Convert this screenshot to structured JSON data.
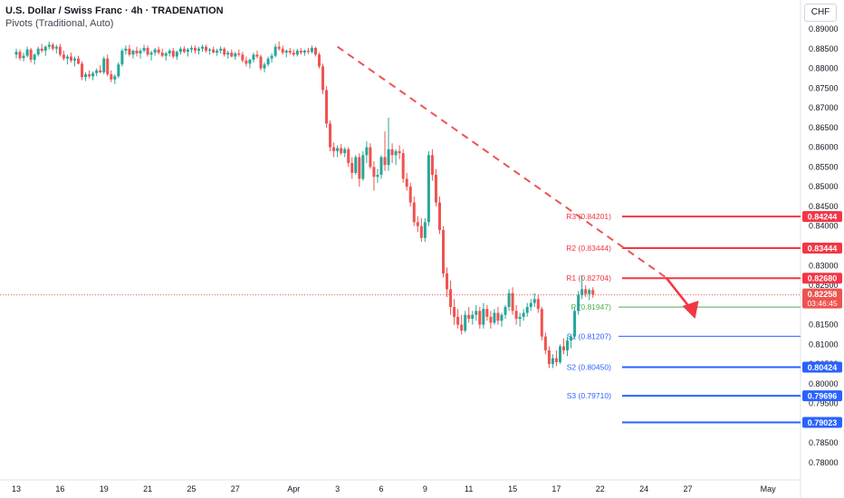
{
  "header": {
    "title": "U.S. Dollar / Swiss Franc · 4h · TRADENATION",
    "indicator": "Pivots (Traditional, Auto)"
  },
  "currency_button": "CHF",
  "colors": {
    "up": "#26a69a",
    "down": "#ef5350",
    "resistance": "#f23645",
    "support": "#2962ff",
    "pivot": "#4caf50",
    "grid_text": "#131722"
  },
  "chart_data": {
    "type": "candlestick",
    "ylim": [
      0.7775,
      0.8925
    ],
    "yticks": [
      0.89,
      0.885,
      0.88,
      0.875,
      0.87,
      0.865,
      0.86,
      0.855,
      0.85,
      0.845,
      0.84,
      0.835,
      0.83,
      0.825,
      0.82,
      0.815,
      0.81,
      0.805,
      0.8,
      0.795,
      0.79,
      0.785,
      0.78
    ],
    "ytick_labels": [
      "0.89000",
      "0.88500",
      "0.88000",
      "0.87500",
      "0.87000",
      "0.86500",
      "0.86000",
      "0.85500",
      "0.85000",
      "0.84500",
      "0.84000",
      "0.83500",
      "0.83000",
      "0.82500",
      "0.82000",
      "0.81500",
      "0.81000",
      "0.80500",
      "0.80000",
      "0.79500",
      "0.79000",
      "0.78500",
      "0.78000"
    ],
    "xticks": [
      {
        "label": "13",
        "i": 0
      },
      {
        "label": "16",
        "i": 12
      },
      {
        "label": "19",
        "i": 24
      },
      {
        "label": "21",
        "i": 36
      },
      {
        "label": "25",
        "i": 48
      },
      {
        "label": "27",
        "i": 60
      },
      {
        "label": "Apr",
        "i": 76
      },
      {
        "label": "3",
        "i": 88
      },
      {
        "label": "6",
        "i": 100
      },
      {
        "label": "9",
        "i": 112
      },
      {
        "label": "11",
        "i": 124
      },
      {
        "label": "15",
        "i": 136
      },
      {
        "label": "17",
        "i": 148
      },
      {
        "label": "22",
        "i": 160
      },
      {
        "label": "24",
        "i": 172
      },
      {
        "label": "27",
        "i": 184
      },
      {
        "label": "May",
        "i": 206
      }
    ],
    "candles": [
      [
        0.8835,
        0.885,
        0.8825,
        0.8842
      ],
      [
        0.8842,
        0.8848,
        0.882,
        0.8826
      ],
      [
        0.8826,
        0.884,
        0.8818,
        0.8832
      ],
      [
        0.8832,
        0.8855,
        0.8828,
        0.8848
      ],
      [
        0.8848,
        0.8852,
        0.8815,
        0.8822
      ],
      [
        0.8822,
        0.8838,
        0.881,
        0.8835
      ],
      [
        0.8835,
        0.8855,
        0.883,
        0.885
      ],
      [
        0.885,
        0.8862,
        0.884,
        0.8845
      ],
      [
        0.8845,
        0.8858,
        0.8832,
        0.8855
      ],
      [
        0.8855,
        0.8868,
        0.8848,
        0.886
      ],
      [
        0.886,
        0.8865,
        0.8845,
        0.885
      ],
      [
        0.885,
        0.886,
        0.8838,
        0.8855
      ],
      [
        0.8855,
        0.8862,
        0.883,
        0.8835
      ],
      [
        0.8835,
        0.8845,
        0.882,
        0.8825
      ],
      [
        0.8825,
        0.8835,
        0.881,
        0.883
      ],
      [
        0.883,
        0.884,
        0.8815,
        0.882
      ],
      [
        0.882,
        0.883,
        0.8805,
        0.8825
      ],
      [
        0.8825,
        0.8832,
        0.881,
        0.8812
      ],
      [
        0.8812,
        0.8818,
        0.877,
        0.8778
      ],
      [
        0.8778,
        0.879,
        0.8768,
        0.8785
      ],
      [
        0.8785,
        0.8795,
        0.8775,
        0.878
      ],
      [
        0.878,
        0.8792,
        0.877,
        0.8788
      ],
      [
        0.8788,
        0.88,
        0.878,
        0.8795
      ],
      [
        0.8795,
        0.8808,
        0.8788,
        0.879
      ],
      [
        0.879,
        0.883,
        0.8785,
        0.8825
      ],
      [
        0.8825,
        0.8835,
        0.878,
        0.8785
      ],
      [
        0.8785,
        0.8795,
        0.8765,
        0.8772
      ],
      [
        0.8772,
        0.8785,
        0.876,
        0.878
      ],
      [
        0.878,
        0.8815,
        0.8775,
        0.881
      ],
      [
        0.881,
        0.885,
        0.8805,
        0.8845
      ],
      [
        0.8845,
        0.8858,
        0.8835,
        0.885
      ],
      [
        0.885,
        0.886,
        0.883,
        0.8835
      ],
      [
        0.8835,
        0.8848,
        0.8825,
        0.8845
      ],
      [
        0.8845,
        0.8855,
        0.883,
        0.8838
      ],
      [
        0.8838,
        0.885,
        0.8825,
        0.8845
      ],
      [
        0.8845,
        0.886,
        0.884,
        0.8852
      ],
      [
        0.8852,
        0.8858,
        0.883,
        0.8835
      ],
      [
        0.8835,
        0.8845,
        0.882,
        0.884
      ],
      [
        0.884,
        0.8852,
        0.8832,
        0.8848
      ],
      [
        0.8848,
        0.8855,
        0.8835,
        0.884
      ],
      [
        0.884,
        0.885,
        0.8828,
        0.8832
      ],
      [
        0.8832,
        0.8842,
        0.882,
        0.8838
      ],
      [
        0.8838,
        0.885,
        0.883,
        0.8845
      ],
      [
        0.8845,
        0.8852,
        0.8825,
        0.883
      ],
      [
        0.883,
        0.8845,
        0.8822,
        0.8842
      ],
      [
        0.8842,
        0.8855,
        0.8835,
        0.885
      ],
      [
        0.885,
        0.8856,
        0.8838,
        0.8842
      ],
      [
        0.8842,
        0.8852,
        0.883,
        0.8848
      ],
      [
        0.8848,
        0.8858,
        0.884,
        0.8852
      ],
      [
        0.8852,
        0.8858,
        0.8838,
        0.8845
      ],
      [
        0.8845,
        0.8855,
        0.8835,
        0.885
      ],
      [
        0.885,
        0.886,
        0.8842,
        0.8855
      ],
      [
        0.8855,
        0.886,
        0.884,
        0.8845
      ],
      [
        0.8845,
        0.8852,
        0.8835,
        0.8848
      ],
      [
        0.8848,
        0.8855,
        0.8838,
        0.884
      ],
      [
        0.884,
        0.885,
        0.8832,
        0.8845
      ],
      [
        0.8845,
        0.8856,
        0.8838,
        0.885
      ],
      [
        0.885,
        0.8854,
        0.883,
        0.8835
      ],
      [
        0.8835,
        0.8845,
        0.8825,
        0.884
      ],
      [
        0.884,
        0.8848,
        0.8828,
        0.883
      ],
      [
        0.883,
        0.8842,
        0.8822,
        0.8838
      ],
      [
        0.8838,
        0.8848,
        0.883,
        0.8835
      ],
      [
        0.8835,
        0.8842,
        0.8815,
        0.882
      ],
      [
        0.882,
        0.883,
        0.8805,
        0.8812
      ],
      [
        0.8812,
        0.8825,
        0.88,
        0.8822
      ],
      [
        0.8822,
        0.884,
        0.8815,
        0.8835
      ],
      [
        0.8835,
        0.8845,
        0.8825,
        0.883
      ],
      [
        0.883,
        0.8835,
        0.8795,
        0.88
      ],
      [
        0.88,
        0.8815,
        0.879,
        0.881
      ],
      [
        0.881,
        0.883,
        0.8805,
        0.8825
      ],
      [
        0.8825,
        0.8838,
        0.8815,
        0.8832
      ],
      [
        0.8832,
        0.8862,
        0.8828,
        0.8855
      ],
      [
        0.8855,
        0.8868,
        0.8845,
        0.885
      ],
      [
        0.885,
        0.8858,
        0.8835,
        0.884
      ],
      [
        0.884,
        0.8848,
        0.8828,
        0.8845
      ],
      [
        0.8845,
        0.8852,
        0.8835,
        0.884
      ],
      [
        0.884,
        0.8848,
        0.883,
        0.8835
      ],
      [
        0.8835,
        0.885,
        0.883,
        0.8845
      ],
      [
        0.8845,
        0.8852,
        0.8835,
        0.884
      ],
      [
        0.884,
        0.8848,
        0.8832,
        0.8845
      ],
      [
        0.8845,
        0.8852,
        0.8836,
        0.8842
      ],
      [
        0.8842,
        0.8858,
        0.8838,
        0.8852
      ],
      [
        0.8852,
        0.8855,
        0.883,
        0.8835
      ],
      [
        0.8835,
        0.884,
        0.88,
        0.8805
      ],
      [
        0.8805,
        0.8812,
        0.8735,
        0.8745
      ],
      [
        0.8745,
        0.8755,
        0.865,
        0.866
      ],
      [
        0.866,
        0.8668,
        0.859,
        0.86
      ],
      [
        0.86,
        0.8612,
        0.8575,
        0.859
      ],
      [
        0.859,
        0.8605,
        0.8575,
        0.8598
      ],
      [
        0.8598,
        0.8608,
        0.858,
        0.8585
      ],
      [
        0.8585,
        0.86,
        0.8575,
        0.8595
      ],
      [
        0.8595,
        0.86,
        0.855,
        0.856
      ],
      [
        0.856,
        0.8575,
        0.852,
        0.8535
      ],
      [
        0.8535,
        0.858,
        0.853,
        0.8575
      ],
      [
        0.8575,
        0.8585,
        0.85,
        0.852
      ],
      [
        0.852,
        0.859,
        0.8515,
        0.858
      ],
      [
        0.858,
        0.8615,
        0.856,
        0.86
      ],
      [
        0.86,
        0.861,
        0.8545,
        0.855
      ],
      [
        0.855,
        0.8565,
        0.849,
        0.8525
      ],
      [
        0.8525,
        0.8545,
        0.851,
        0.853
      ],
      [
        0.853,
        0.858,
        0.852,
        0.8575
      ],
      [
        0.8575,
        0.864,
        0.854,
        0.8555
      ],
      [
        0.8555,
        0.8675,
        0.854,
        0.8595
      ],
      [
        0.8595,
        0.861,
        0.856,
        0.858
      ],
      [
        0.858,
        0.8595,
        0.8555,
        0.859
      ],
      [
        0.859,
        0.8605,
        0.857,
        0.8585
      ],
      [
        0.8585,
        0.8595,
        0.851,
        0.852
      ],
      [
        0.852,
        0.8535,
        0.849,
        0.85
      ],
      [
        0.85,
        0.851,
        0.845,
        0.846
      ],
      [
        0.846,
        0.8475,
        0.84,
        0.841
      ],
      [
        0.841,
        0.8425,
        0.8385,
        0.84
      ],
      [
        0.84,
        0.842,
        0.836,
        0.837
      ],
      [
        0.837,
        0.842,
        0.836,
        0.841
      ],
      [
        0.841,
        0.859,
        0.84,
        0.858
      ],
      [
        0.858,
        0.8595,
        0.8515,
        0.853
      ],
      [
        0.853,
        0.8545,
        0.845,
        0.846
      ],
      [
        0.846,
        0.8475,
        0.838,
        0.839
      ],
      [
        0.839,
        0.84,
        0.827,
        0.828
      ],
      [
        0.828,
        0.8295,
        0.822,
        0.824
      ],
      [
        0.824,
        0.8262,
        0.8175,
        0.8195
      ],
      [
        0.8195,
        0.8215,
        0.815,
        0.817
      ],
      [
        0.817,
        0.819,
        0.814,
        0.815
      ],
      [
        0.815,
        0.8175,
        0.8125,
        0.8135
      ],
      [
        0.8135,
        0.8185,
        0.813,
        0.8175
      ],
      [
        0.8175,
        0.8195,
        0.8155,
        0.8165
      ],
      [
        0.8165,
        0.8185,
        0.815,
        0.8175
      ],
      [
        0.8175,
        0.82,
        0.816,
        0.8185
      ],
      [
        0.8185,
        0.8195,
        0.814,
        0.815
      ],
      [
        0.815,
        0.8205,
        0.814,
        0.819
      ],
      [
        0.819,
        0.82,
        0.816,
        0.817
      ],
      [
        0.817,
        0.8185,
        0.814,
        0.8155
      ],
      [
        0.8155,
        0.819,
        0.815,
        0.818
      ],
      [
        0.818,
        0.8195,
        0.815,
        0.816
      ],
      [
        0.816,
        0.818,
        0.8145,
        0.8175
      ],
      [
        0.8175,
        0.82,
        0.8165,
        0.8195
      ],
      [
        0.8195,
        0.824,
        0.8185,
        0.823
      ],
      [
        0.823,
        0.8245,
        0.8175,
        0.8185
      ],
      [
        0.8185,
        0.82,
        0.815,
        0.8165
      ],
      [
        0.8165,
        0.818,
        0.8145,
        0.817
      ],
      [
        0.817,
        0.819,
        0.816,
        0.818
      ],
      [
        0.818,
        0.8205,
        0.817,
        0.8195
      ],
      [
        0.8195,
        0.8215,
        0.8185,
        0.8205
      ],
      [
        0.8205,
        0.823,
        0.8195,
        0.8215
      ],
      [
        0.8215,
        0.8225,
        0.818,
        0.819
      ],
      [
        0.819,
        0.8195,
        0.811,
        0.812
      ],
      [
        0.812,
        0.813,
        0.8075,
        0.8085
      ],
      [
        0.8085,
        0.8095,
        0.804,
        0.805
      ],
      [
        0.805,
        0.8075,
        0.804,
        0.8065
      ],
      [
        0.8065,
        0.8085,
        0.8045,
        0.8055
      ],
      [
        0.8055,
        0.81,
        0.805,
        0.8095
      ],
      [
        0.8095,
        0.8115,
        0.8075,
        0.8085
      ],
      [
        0.8085,
        0.812,
        0.807,
        0.811
      ],
      [
        0.811,
        0.8125,
        0.809,
        0.812
      ],
      [
        0.812,
        0.8195,
        0.8115,
        0.8185
      ],
      [
        0.8185,
        0.8235,
        0.8175,
        0.8225
      ],
      [
        0.8225,
        0.8275,
        0.8215,
        0.824
      ],
      [
        0.824,
        0.825,
        0.822,
        0.8228
      ],
      [
        0.8228,
        0.8242,
        0.8212,
        0.8238
      ],
      [
        0.8238,
        0.8245,
        0.8218,
        0.8226
      ]
    ],
    "last_price": "0.82258",
    "countdown": "03:46:45",
    "pivots": [
      {
        "name": "R3",
        "value": "(0.84201)",
        "axis_label": "0.84244",
        "level": 0.84244,
        "kind": "resistance"
      },
      {
        "name": "R2",
        "value": "(0.83444)",
        "axis_label": "0.83444",
        "level": 0.83444,
        "kind": "resistance"
      },
      {
        "name": "R1",
        "value": "(0.82704)",
        "axis_label": "0.82680",
        "level": 0.8268,
        "kind": "resistance"
      },
      {
        "name": "P",
        "value": "(0.81947)",
        "axis_label": "",
        "level": 0.81947,
        "kind": "pivot"
      },
      {
        "name": "S1",
        "value": "(0.81207)",
        "axis_label": "",
        "level": 0.81207,
        "kind": "support"
      },
      {
        "name": "S2",
        "value": "(0.80450)",
        "axis_label": "0.80424",
        "level": 0.80424,
        "kind": "support"
      },
      {
        "name": "S3",
        "value": "(0.79710)",
        "axis_label": "0.79696",
        "level": 0.79696,
        "kind": "support"
      },
      {
        "name": "",
        "value": "",
        "axis_label": "0.79023",
        "level": 0.79023,
        "kind": "support"
      }
    ],
    "trendline": {
      "from": [
        0.8855,
        88
      ],
      "to": [
        0.827,
        178
      ]
    },
    "arrow": {
      "from": [
        0.827,
        178
      ],
      "to": [
        0.8165,
        186
      ]
    }
  }
}
